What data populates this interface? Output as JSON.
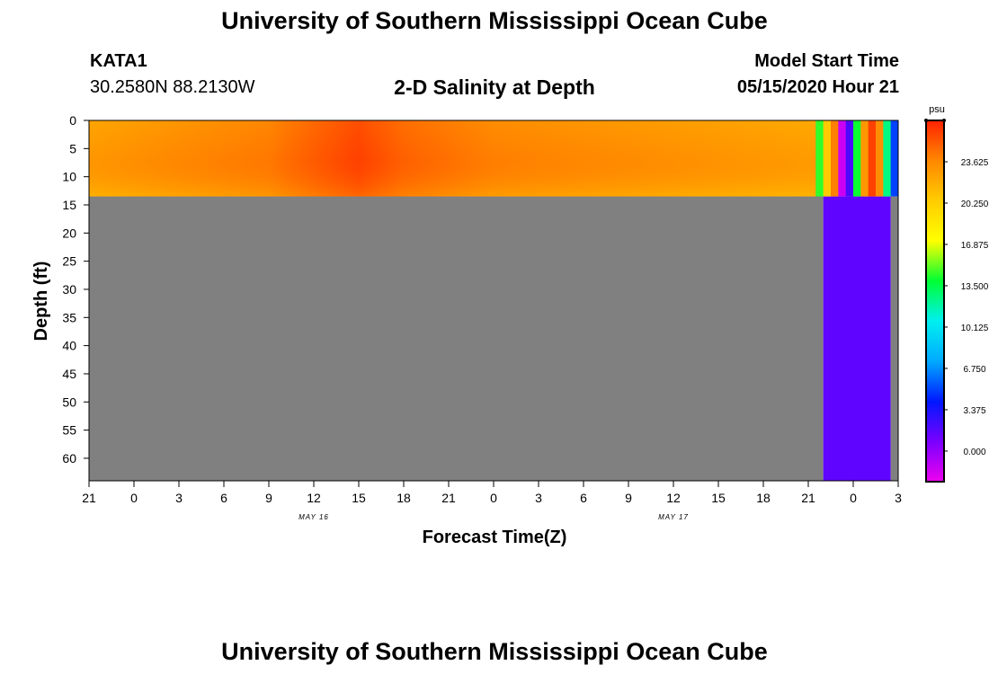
{
  "header": {
    "title_top": "University of Southern Mississippi Ocean Cube",
    "station": "KATA1",
    "coords": "30.2580N 88.2130W",
    "plot_title": "2-D Salinity at Depth",
    "model_start_label": "Model Start Time",
    "model_start_value": "05/15/2020 Hour 21"
  },
  "footer": {
    "title_bottom": "University of Southern Mississippi Ocean Cube"
  },
  "chart_data": {
    "type": "heatmap",
    "title": "2-D Salinity at Depth",
    "xlabel": "Forecast Time(Z)",
    "ylabel": "Depth (ft)",
    "x_tick_labels": [
      "21",
      "0",
      "3",
      "6",
      "9",
      "12",
      "15",
      "18",
      "21",
      "0",
      "3",
      "6",
      "9",
      "12",
      "15",
      "18",
      "21",
      "0",
      "3"
    ],
    "x_hours": [
      0,
      3,
      6,
      9,
      12,
      15,
      18,
      21,
      24,
      27,
      30,
      33,
      36,
      39,
      42,
      45,
      48,
      51,
      54
    ],
    "date_labels": [
      {
        "text": "MAY 16",
        "hour": 15
      },
      {
        "text": "MAY 17",
        "hour": 39
      }
    ],
    "y_ticks": [
      0,
      5,
      10,
      15,
      20,
      25,
      30,
      35,
      40,
      45,
      50,
      55,
      60
    ],
    "ylim": [
      0,
      64
    ],
    "xlim_hours": [
      0,
      54
    ],
    "colorbar": {
      "unit": "psu",
      "ticks": [
        "23.625",
        "20.250",
        "16.875",
        "13.500",
        "10.125",
        "6.750",
        "3.375",
        "0.000"
      ],
      "tick_values": [
        23.625,
        20.25,
        16.875,
        13.5,
        10.125,
        6.75,
        3.375,
        0.0
      ],
      "range": [
        -2.5,
        27.0
      ],
      "stops": [
        "#ee00ee",
        "#7a00ff",
        "#0018ff",
        "#00aaff",
        "#00f0f0",
        "#00ff33",
        "#ffff00",
        "#ffcc00",
        "#ff8800",
        "#ff2200"
      ]
    },
    "layers": [
      {
        "depth_range": [
          0,
          13.5
        ],
        "hour_range": [
          0,
          48.5
        ],
        "values_by_hour": [
          {
            "hour": 0,
            "value": 22.6
          },
          {
            "hour": 6,
            "value": 23.4
          },
          {
            "hour": 12,
            "value": 24.0
          },
          {
            "hour": 15,
            "value": 25.0
          },
          {
            "hour": 18,
            "value": 25.9
          },
          {
            "hour": 21,
            "value": 24.8
          },
          {
            "hour": 27,
            "value": 23.8
          },
          {
            "hour": 33,
            "value": 23.4
          },
          {
            "hour": 39,
            "value": 23.0
          },
          {
            "hour": 45,
            "value": 22.6
          },
          {
            "hour": 48,
            "value": 22.4
          }
        ]
      },
      {
        "depth_range": [
          0,
          64
        ],
        "hour_range": [
          0,
          49
        ],
        "no_data": true
      },
      {
        "depth_range": [
          13.5,
          64
        ],
        "hour_range": [
          49,
          53.5
        ],
        "value": 1.5
      },
      {
        "depth_range": [
          13.5,
          64
        ],
        "hour_range": [
          53.5,
          54
        ],
        "no_data": true
      }
    ],
    "surface_strips": [
      {
        "hour_range": [
          48.5,
          49
        ],
        "value": 14.5
      },
      {
        "hour_range": [
          49,
          49.5
        ],
        "value": 20.5
      },
      {
        "hour_range": [
          49.5,
          50
        ],
        "value": 24.0
      },
      {
        "hour_range": [
          50,
          50.5
        ],
        "value": -1.5
      },
      {
        "hour_range": [
          50.5,
          51
        ],
        "value": 2.0
      },
      {
        "hour_range": [
          51,
          51.5
        ],
        "value": 14.0
      },
      {
        "hour_range": [
          51.5,
          52
        ],
        "value": 23.0
      },
      {
        "hour_range": [
          52,
          52.5
        ],
        "value": 26.0
      },
      {
        "hour_range": [
          52.5,
          53
        ],
        "value": 23.5
      },
      {
        "hour_range": [
          53,
          53.5
        ],
        "value": 12.5
      },
      {
        "hour_range": [
          53.5,
          54
        ],
        "value": 5.0
      }
    ],
    "no_data_color": "#808080"
  }
}
